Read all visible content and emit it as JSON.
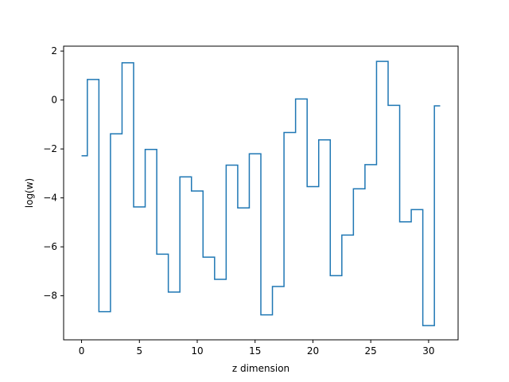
{
  "chart_data": {
    "type": "line",
    "step": "mid",
    "title": "",
    "xlabel": "z dimension",
    "ylabel": "log(w)",
    "xlim": [
      -1.55,
      32.55
    ],
    "ylim": [
      -9.8,
      2.2
    ],
    "xticks": [
      0,
      5,
      10,
      15,
      20,
      25,
      30
    ],
    "yticks": [
      2,
      0,
      -2,
      -4,
      -6,
      -8
    ],
    "grid": false,
    "legend": "none",
    "series": [
      {
        "color": "#1f77b4",
        "x": [
          0,
          1,
          2,
          3,
          4,
          5,
          6,
          7,
          8,
          9,
          10,
          11,
          12,
          13,
          14,
          15,
          16,
          17,
          18,
          19,
          20,
          21,
          22,
          23,
          24,
          25,
          26,
          27,
          28,
          29,
          30,
          31
        ],
        "values": [
          -2.28,
          0.84,
          -8.65,
          -1.38,
          1.52,
          -4.37,
          -2.02,
          -6.3,
          -7.85,
          -3.14,
          -3.72,
          -6.42,
          -7.33,
          -2.66,
          -4.41,
          -2.2,
          -8.78,
          -7.62,
          -1.33,
          0.04,
          -3.54,
          -1.63,
          -7.18,
          -5.52,
          -3.63,
          -2.64,
          1.58,
          -0.22,
          -4.98,
          -4.48,
          -9.22,
          -0.24
        ]
      }
    ]
  }
}
